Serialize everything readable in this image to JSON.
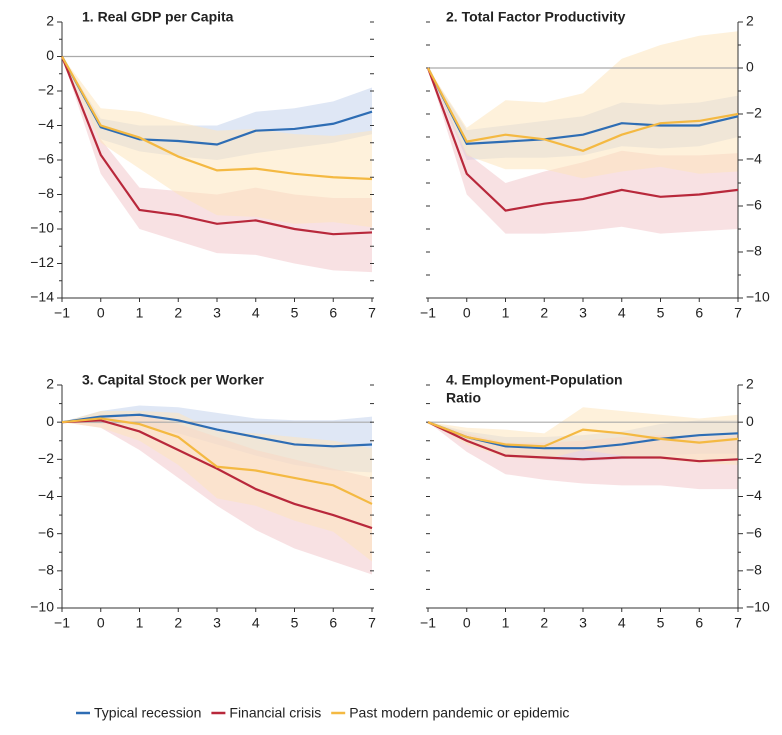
{
  "legend": [
    {
      "name": "Typical recession",
      "color": "#2e6db4"
    },
    {
      "name": "Financial crisis",
      "color": "#b8283b"
    },
    {
      "name": "Past modern pandemic or epidemic",
      "color": "#f4b942"
    }
  ],
  "chart_data": [
    {
      "type": "line",
      "title": "1. Real GDP per Capita",
      "axis_side": "left",
      "x": [
        -1,
        0,
        1,
        2,
        3,
        4,
        5,
        6,
        7
      ],
      "xlim": [
        -1,
        7
      ],
      "xticks": [
        {
          "value": -1,
          "label": "−1"
        },
        0,
        1,
        2,
        3,
        4,
        5,
        6,
        7
      ],
      "ylim": [
        -14,
        2
      ],
      "yticks": [
        2,
        0,
        {
          "value": -2,
          "label": "−2"
        },
        {
          "value": -4,
          "label": "−4"
        },
        {
          "value": -6,
          "label": "−6"
        },
        {
          "value": -8,
          "label": "−8"
        },
        {
          "value": -10,
          "label": "−10"
        },
        {
          "value": -12,
          "label": "−12"
        },
        {
          "value": -14,
          "label": "−14"
        }
      ],
      "minor_yticks": [
        1,
        -1,
        -3,
        -5,
        -7,
        -9,
        -11,
        -13
      ],
      "series": [
        {
          "values": [
            0,
            -4.1,
            -4.8,
            -4.9,
            -5.1,
            -4.3,
            -4.2,
            -3.9,
            -3.2
          ],
          "lower": [
            0,
            -4.8,
            -5.5,
            -5.8,
            -6.0,
            -5.6,
            -5.3,
            -5.0,
            -4.5
          ],
          "upper": [
            0,
            -3.6,
            -4.0,
            -4.0,
            -4.0,
            -3.2,
            -3.0,
            -2.6,
            -1.8
          ]
        },
        {
          "values": [
            0,
            -5.7,
            -8.9,
            -9.2,
            -9.7,
            -9.5,
            -10.0,
            -10.3,
            -10.2
          ],
          "lower": [
            0,
            -6.8,
            -10.0,
            -10.7,
            -11.4,
            -11.5,
            -12.0,
            -12.4,
            -12.5
          ],
          "upper": [
            0,
            -4.8,
            -7.6,
            -7.8,
            -8.0,
            -7.6,
            -8.0,
            -8.2,
            -8.2
          ]
        },
        {
          "values": [
            0,
            -4.0,
            -4.7,
            -5.8,
            -6.6,
            -6.5,
            -6.8,
            -7.0,
            -7.1
          ],
          "lower": [
            0,
            -5.0,
            -6.5,
            -8.0,
            -9.2,
            -9.3,
            -9.7,
            -9.6,
            -9.9
          ],
          "upper": [
            0,
            -3.0,
            -3.2,
            -3.8,
            -4.3,
            -4.2,
            -4.5,
            -4.6,
            -4.3
          ]
        }
      ]
    },
    {
      "type": "line",
      "title": "2. Total Factor Productivity",
      "axis_side": "right",
      "x": [
        -1,
        0,
        1,
        2,
        3,
        4,
        5,
        6,
        7
      ],
      "xlim": [
        -1,
        7
      ],
      "xticks": [
        {
          "value": -1,
          "label": "−1"
        },
        0,
        1,
        2,
        3,
        4,
        5,
        6,
        7
      ],
      "ylim": [
        -10,
        2
      ],
      "yticks": [
        2,
        0,
        {
          "value": -2,
          "label": "−2"
        },
        {
          "value": -4,
          "label": "−4"
        },
        {
          "value": -6,
          "label": "−6"
        },
        {
          "value": -8,
          "label": "−8"
        },
        {
          "value": -10,
          "label": "−10"
        }
      ],
      "minor_yticks": [
        1,
        -1,
        -3,
        -5,
        -7,
        -9
      ],
      "series": [
        {
          "values": [
            0,
            -3.3,
            -3.2,
            -3.1,
            -2.9,
            -2.4,
            -2.5,
            -2.5,
            -2.1
          ],
          "lower": [
            0,
            -4.0,
            -3.9,
            -3.9,
            -3.8,
            -3.4,
            -3.5,
            -3.4,
            -3.0
          ],
          "upper": [
            0,
            -2.7,
            -2.5,
            -2.3,
            -2.1,
            -1.5,
            -1.6,
            -1.5,
            -1.2
          ]
        },
        {
          "values": [
            0,
            -4.6,
            -6.2,
            -5.9,
            -5.7,
            -5.3,
            -5.6,
            -5.5,
            -5.3
          ],
          "lower": [
            0,
            -5.5,
            -7.2,
            -7.2,
            -7.1,
            -6.9,
            -7.2,
            -7.1,
            -7.0
          ],
          "upper": [
            0,
            -3.7,
            -5.0,
            -4.5,
            -4.1,
            -3.6,
            -3.8,
            -3.8,
            -3.7
          ]
        },
        {
          "values": [
            0,
            -3.2,
            -2.9,
            -3.1,
            -3.6,
            -2.9,
            -2.4,
            -2.3,
            -2.0
          ],
          "lower": [
            0,
            -3.8,
            -4.4,
            -4.4,
            -4.8,
            -4.5,
            -4.3,
            -4.6,
            -4.5
          ],
          "upper": [
            0,
            -2.6,
            -1.4,
            -1.5,
            -1.1,
            0.4,
            1.0,
            1.4,
            1.6
          ]
        }
      ]
    },
    {
      "type": "line",
      "title": "3. Capital Stock per Worker",
      "axis_side": "left",
      "x": [
        -1,
        0,
        1,
        2,
        3,
        4,
        5,
        6,
        7
      ],
      "xlim": [
        -1,
        7
      ],
      "xticks": [
        {
          "value": -1,
          "label": "−1"
        },
        0,
        1,
        2,
        3,
        4,
        5,
        6,
        7
      ],
      "ylim": [
        -10,
        2
      ],
      "yticks": [
        2,
        0,
        {
          "value": -2,
          "label": "−2"
        },
        {
          "value": -4,
          "label": "−4"
        },
        {
          "value": -6,
          "label": "−6"
        },
        {
          "value": -8,
          "label": "−8"
        },
        {
          "value": -10,
          "label": "−10"
        }
      ],
      "minor_yticks": [
        1,
        -1,
        -3,
        -5,
        -7,
        -9
      ],
      "series": [
        {
          "values": [
            0,
            0.3,
            0.4,
            0.1,
            -0.4,
            -0.8,
            -1.2,
            -1.3,
            -1.2
          ],
          "lower": [
            0,
            -0.1,
            -0.2,
            -0.6,
            -1.2,
            -1.8,
            -2.3,
            -2.6,
            -2.7
          ],
          "upper": [
            0,
            0.6,
            0.9,
            0.8,
            0.5,
            0.2,
            0.1,
            0.1,
            0.3
          ]
        },
        {
          "values": [
            0,
            0.1,
            -0.5,
            -1.5,
            -2.5,
            -3.6,
            -4.4,
            -5.0,
            -5.7
          ],
          "lower": [
            0,
            -0.3,
            -1.5,
            -3.0,
            -4.5,
            -5.8,
            -6.8,
            -7.5,
            -8.2
          ],
          "upper": [
            0,
            0.4,
            0.4,
            -0.1,
            -0.8,
            -1.5,
            -2.0,
            -2.5,
            -3.0
          ]
        },
        {
          "values": [
            0,
            0.2,
            -0.1,
            -0.8,
            -2.4,
            -2.6,
            -3.0,
            -3.4,
            -4.4
          ],
          "lower": [
            0,
            -0.3,
            -1.0,
            -2.3,
            -4.1,
            -4.5,
            -5.3,
            -5.9,
            -7.5
          ],
          "upper": [
            0,
            0.6,
            0.6,
            0.5,
            -0.5,
            -0.6,
            -0.8,
            -1.0,
            -1.4
          ]
        }
      ]
    },
    {
      "type": "line",
      "title": [
        "4. Employment-Population",
        "Ratio"
      ],
      "axis_side": "right",
      "x": [
        -1,
        0,
        1,
        2,
        3,
        4,
        5,
        6,
        7
      ],
      "xlim": [
        -1,
        7
      ],
      "xticks": [
        {
          "value": -1,
          "label": "−1"
        },
        0,
        1,
        2,
        3,
        4,
        5,
        6,
        7
      ],
      "ylim": [
        -10,
        2
      ],
      "yticks": [
        2,
        0,
        {
          "value": -2,
          "label": "−2"
        },
        {
          "value": -4,
          "label": "−4"
        },
        {
          "value": -6,
          "label": "−6"
        },
        {
          "value": -8,
          "label": "−8"
        },
        {
          "value": -10,
          "label": "−10"
        }
      ],
      "minor_yticks": [
        1,
        -1,
        -3,
        -5,
        -7,
        -9
      ],
      "series": [
        {
          "values": [
            0,
            -0.8,
            -1.3,
            -1.4,
            -1.4,
            -1.2,
            -0.9,
            -0.7,
            -0.6
          ],
          "lower": [
            0,
            -1.1,
            -1.8,
            -2.0,
            -2.1,
            -2.0,
            -1.8,
            -1.7,
            -1.7
          ],
          "upper": [
            0,
            -0.5,
            -0.8,
            -0.8,
            -0.7,
            -0.5,
            -0.1,
            0.1,
            0.1
          ]
        },
        {
          "values": [
            0,
            -1.0,
            -1.8,
            -1.9,
            -2.0,
            -1.9,
            -1.9,
            -2.1,
            -2.0
          ],
          "lower": [
            0,
            -1.6,
            -2.8,
            -3.1,
            -3.3,
            -3.4,
            -3.4,
            -3.6,
            -3.6
          ],
          "upper": [
            0,
            -0.6,
            -1.1,
            -1.1,
            -1.0,
            -0.8,
            -0.7,
            -0.8,
            -0.7
          ]
        },
        {
          "values": [
            0,
            -0.8,
            -1.2,
            -1.3,
            -0.4,
            -0.6,
            -0.9,
            -1.1,
            -0.9
          ],
          "lower": [
            0,
            -1.2,
            -1.9,
            -2.0,
            -1.5,
            -1.8,
            -2.0,
            -2.2,
            -2.3
          ],
          "upper": [
            0,
            -0.3,
            -0.4,
            -0.6,
            0.8,
            0.6,
            0.4,
            0.2,
            0.4
          ]
        }
      ]
    }
  ]
}
